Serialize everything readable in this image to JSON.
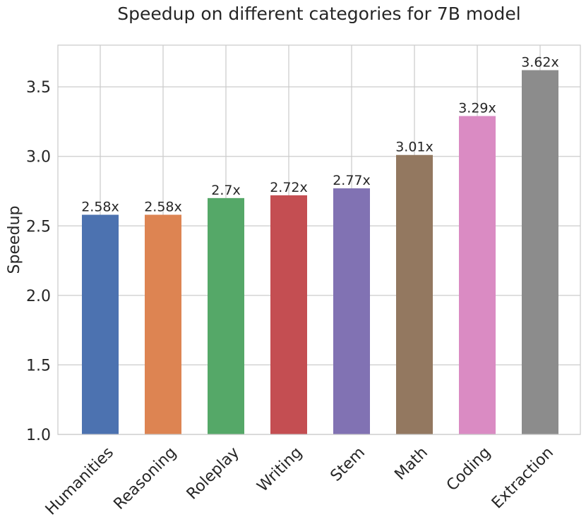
{
  "chart_data": {
    "type": "bar",
    "title": "Speedup on different categories for 7B model",
    "xlabel": "",
    "ylabel": "Speedup",
    "categories": [
      "Humanities",
      "Reasoning",
      "Roleplay",
      "Writing",
      "Stem",
      "Math",
      "Coding",
      "Extraction"
    ],
    "values": [
      2.58,
      2.58,
      2.7,
      2.72,
      2.77,
      3.01,
      3.29,
      3.62
    ],
    "data_labels": [
      "2.58x",
      "2.58x",
      "2.7x",
      "2.72x",
      "2.77x",
      "3.01x",
      "3.29x",
      "3.62x"
    ],
    "colors": [
      "#4c72b0",
      "#dd8452",
      "#55a868",
      "#c44e52",
      "#8172b3",
      "#937860",
      "#da8bc3",
      "#8c8c8c"
    ],
    "ylim": [
      1.0,
      3.8
    ],
    "yticks": [
      1.0,
      1.5,
      2.0,
      2.5,
      3.0,
      3.5
    ],
    "ytick_labels": [
      "1.0",
      "1.5",
      "2.0",
      "2.5",
      "3.0",
      "3.5"
    ],
    "grid": true,
    "style": {
      "background": "#ffffff",
      "grid_color": "#cccccc",
      "spine_color": "#cccccc",
      "text_color": "#262626"
    }
  }
}
